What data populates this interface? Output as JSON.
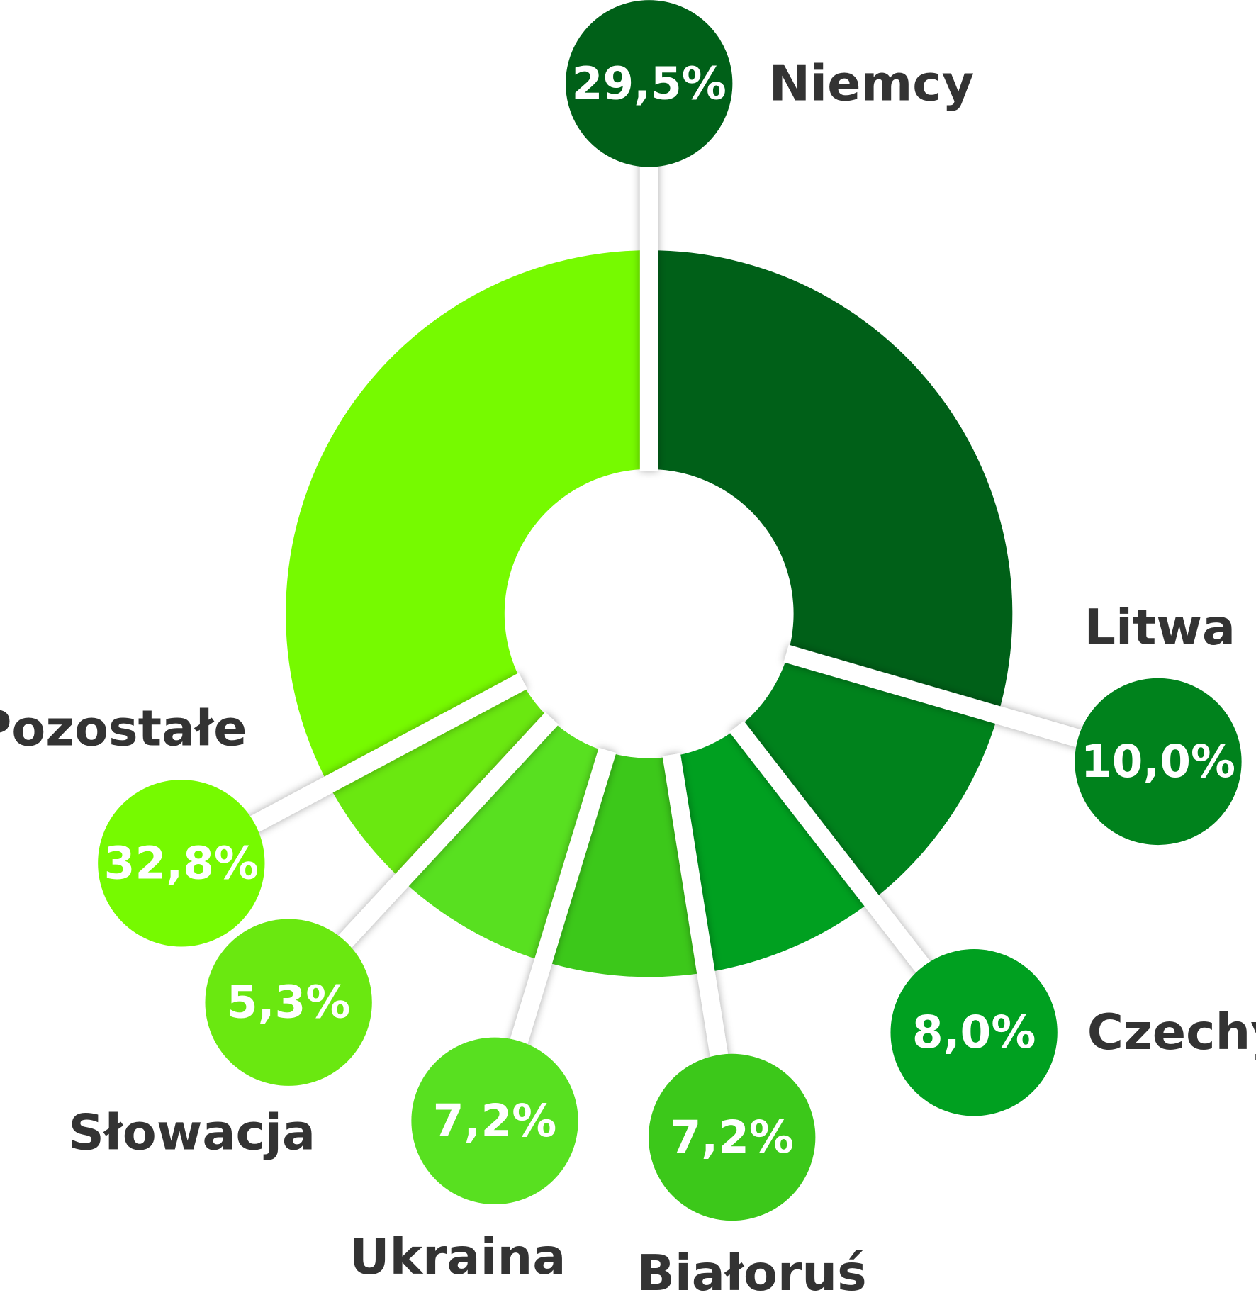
{
  "chart_data": {
    "type": "pie",
    "donut": true,
    "categories": [
      "Niemcy",
      "Litwa",
      "Czechy",
      "Białoruś",
      "Ukraina",
      "Słowacja",
      "Pozostałe"
    ],
    "values": [
      29.5,
      10.0,
      8.0,
      7.2,
      7.2,
      5.3,
      32.8
    ],
    "value_labels": [
      "29,5%",
      "10,0%",
      "8,0%",
      "7,2%",
      "7,2%",
      "5,3%",
      "32,8%"
    ],
    "colors": [
      "#006018",
      "#00821c",
      "#00a020",
      "#3cc81a",
      "#58e020",
      "#6ae810",
      "#76fa00"
    ]
  }
}
